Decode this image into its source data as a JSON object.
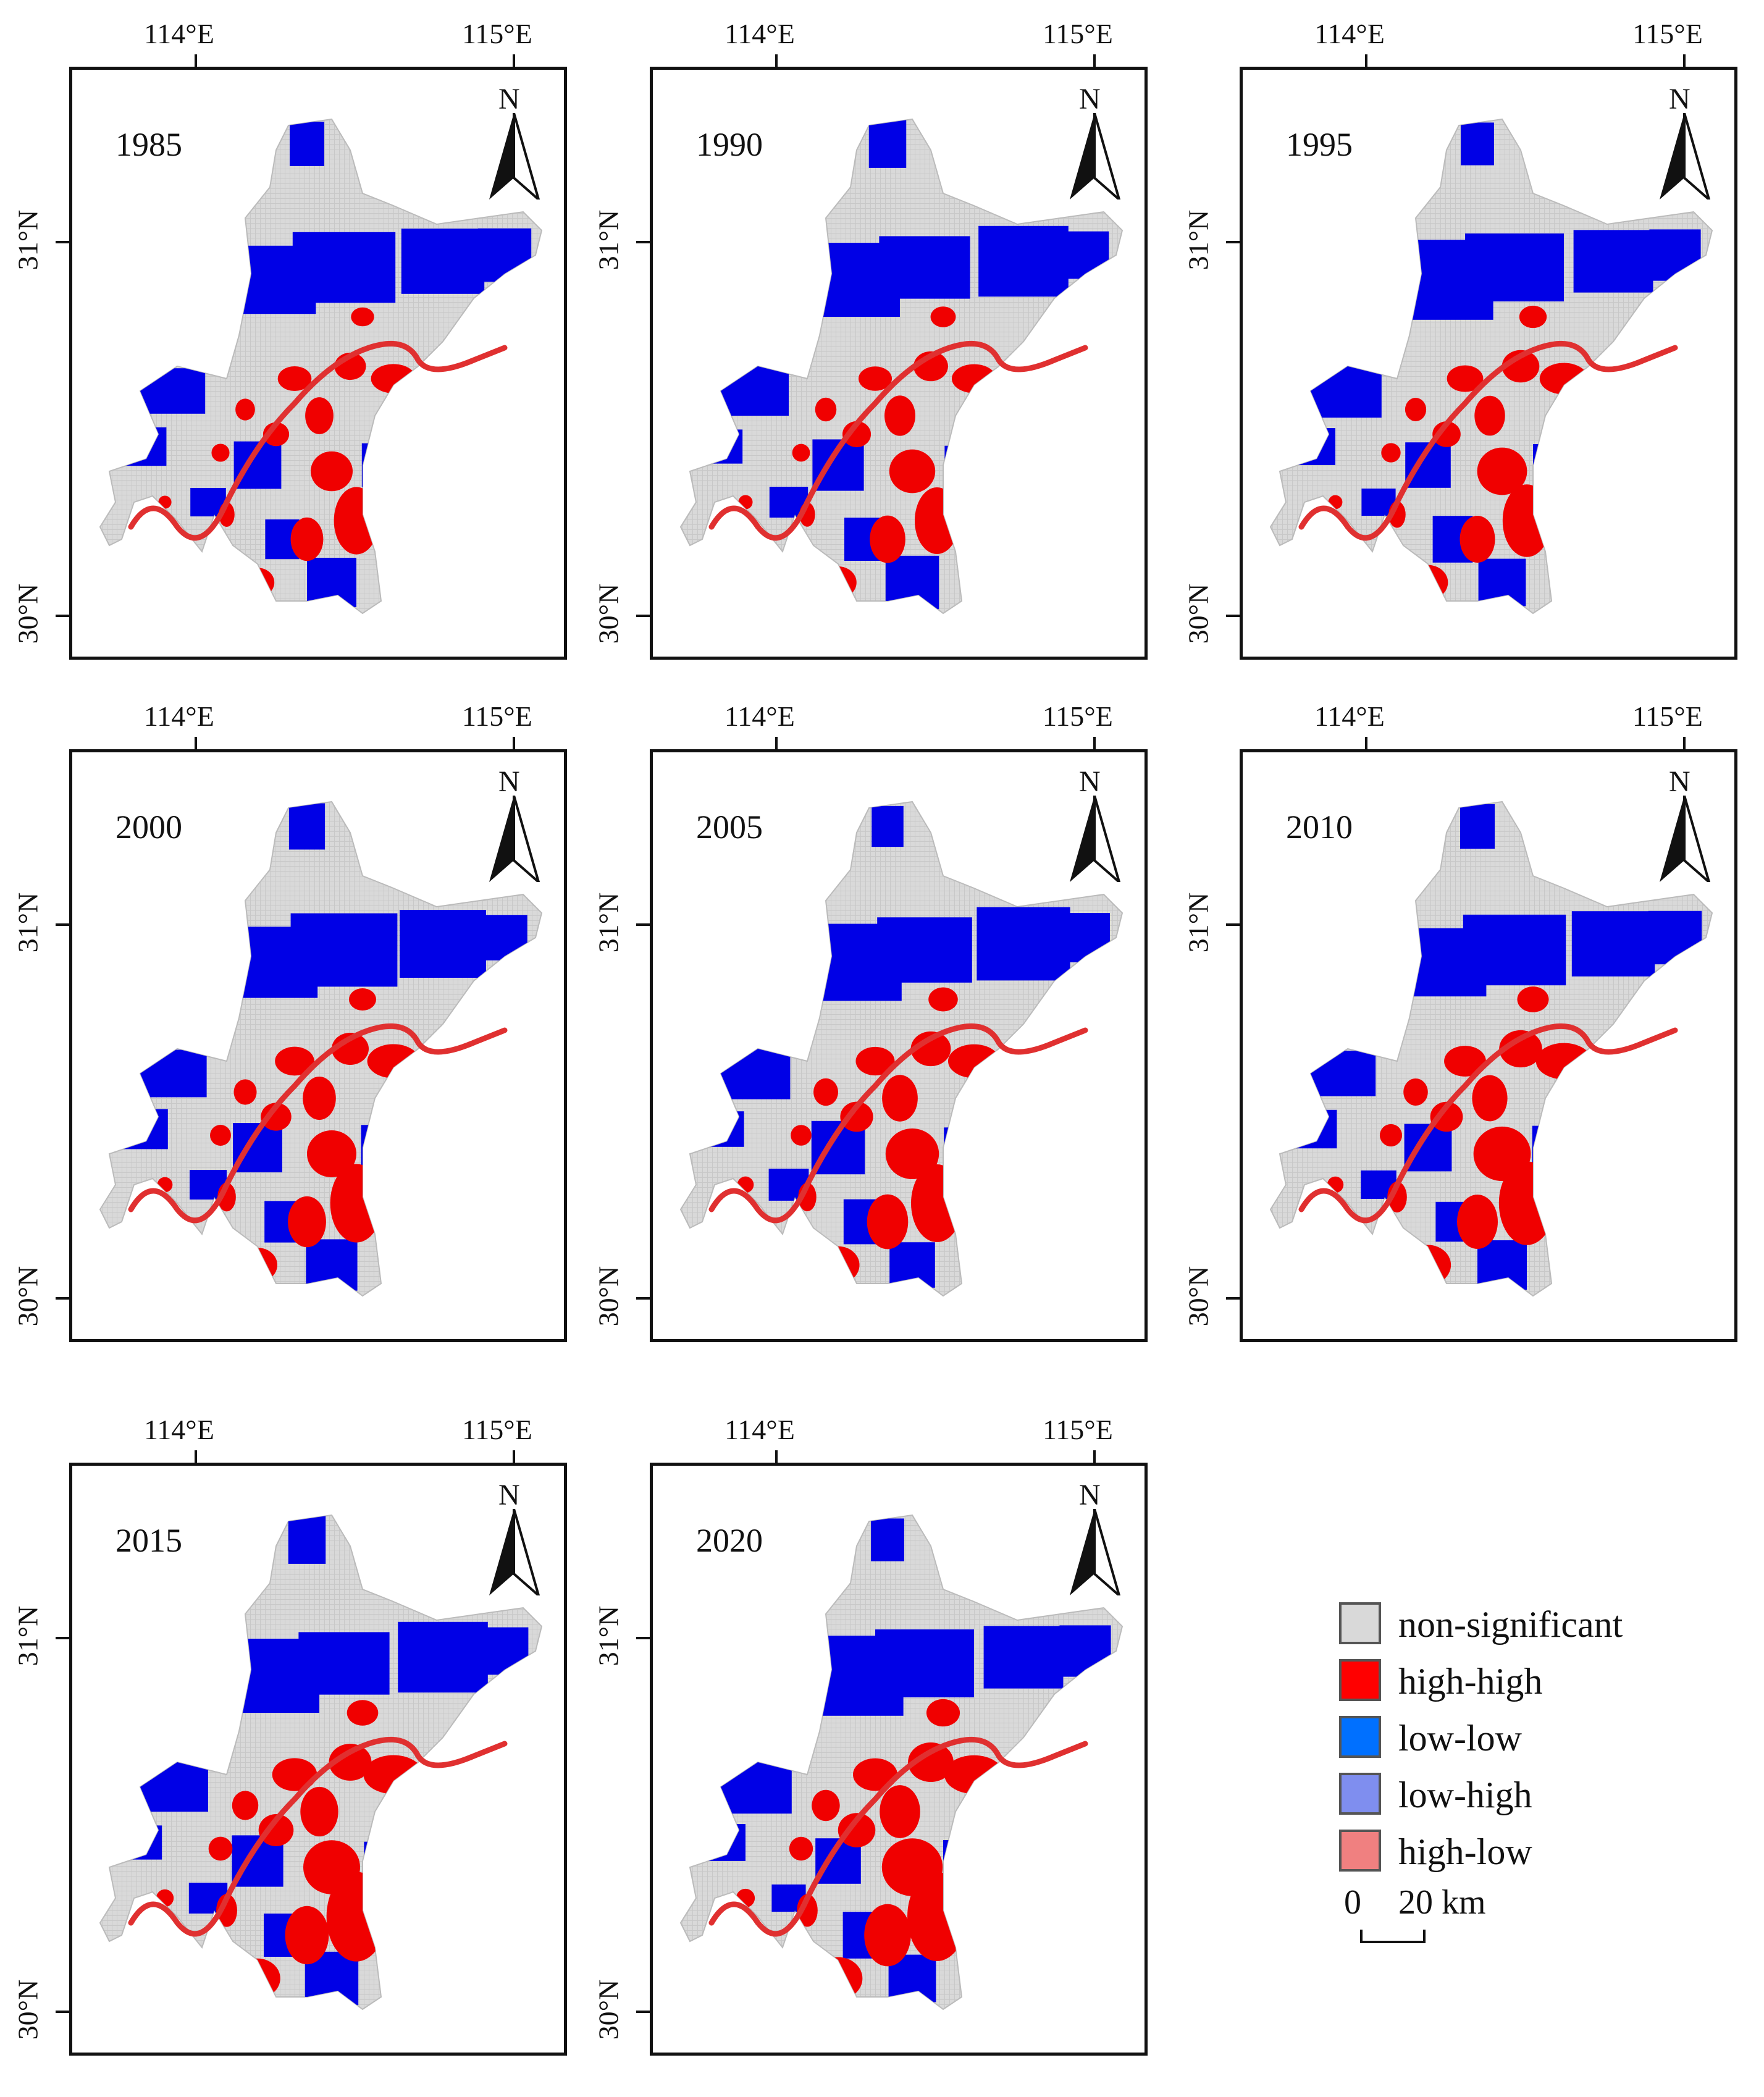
{
  "panels": [
    {
      "year": "1985",
      "lon_labels": [
        "114°E",
        "115°E"
      ],
      "lat_labels": [
        "31°N",
        "30°N"
      ],
      "north": "N"
    },
    {
      "year": "1990",
      "lon_labels": [
        "114°E",
        "115°E"
      ],
      "lat_labels": [
        "31°N",
        "30°N"
      ],
      "north": "N"
    },
    {
      "year": "1995",
      "lon_labels": [
        "114°E",
        "115°E"
      ],
      "lat_labels": [
        "31°N",
        "30°N"
      ],
      "north": "N"
    },
    {
      "year": "2000",
      "lon_labels": [
        "114°E",
        "115°E"
      ],
      "lat_labels": [
        "31°N",
        "30°N"
      ],
      "north": "N"
    },
    {
      "year": "2005",
      "lon_labels": [
        "114°E",
        "115°E"
      ],
      "lat_labels": [
        "31°N",
        "30°N"
      ],
      "north": "N"
    },
    {
      "year": "2010",
      "lon_labels": [
        "114°E",
        "115°E"
      ],
      "lat_labels": [
        "31°N",
        "30°N"
      ],
      "north": "N"
    },
    {
      "year": "2015",
      "lon_labels": [
        "114°E",
        "115°E"
      ],
      "lat_labels": [
        "31°N",
        "30°N"
      ],
      "north": "N"
    },
    {
      "year": "2020",
      "lon_labels": [
        "114°E",
        "115°E"
      ],
      "lat_labels": [
        "31°N",
        "30°N"
      ],
      "north": "N"
    }
  ],
  "legend": {
    "items": [
      {
        "label": "non-significant",
        "color": "#d9d9d9"
      },
      {
        "label": "high-high",
        "color": "#ff0000"
      },
      {
        "label": "low-low",
        "color": "#0070ff"
      },
      {
        "label": "low-high",
        "color": "#7f8eef"
      },
      {
        "label": "high-low",
        "color": "#f08080"
      }
    ],
    "scale_zero": "0",
    "scale_value": "20 km"
  },
  "colors": {
    "non_significant": "#d9d9d9",
    "high_high": "#f00000",
    "low_low": "#0000e6",
    "river": "#e03030"
  }
}
